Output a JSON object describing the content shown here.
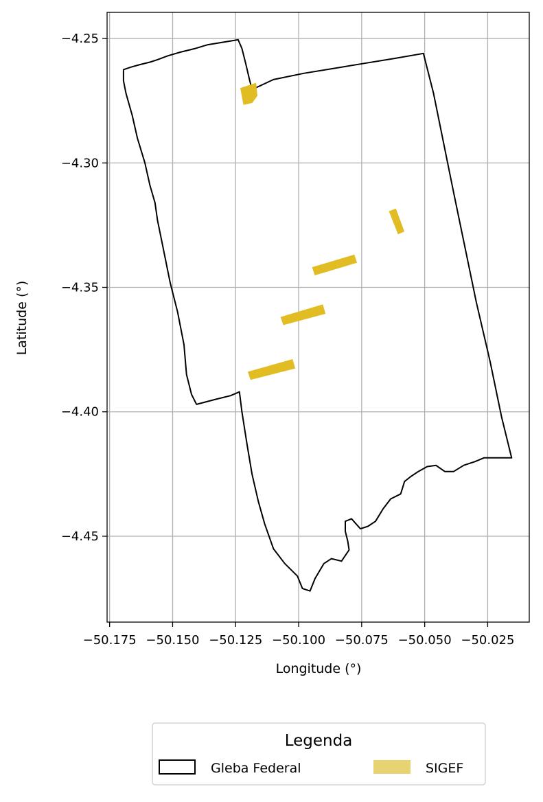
{
  "chart_data": {
    "type": "map",
    "xlabel": "Longitude (°)",
    "ylabel": "Latitude (°)",
    "xlim": [
      -50.176,
      -50.0085
    ],
    "ylim": [
      -4.4845,
      -4.2395
    ],
    "grid": true,
    "xticks": [
      {
        "value": -50.175,
        "label": "−50.175"
      },
      {
        "value": -50.15,
        "label": "−50.150"
      },
      {
        "value": -50.125,
        "label": "−50.125"
      },
      {
        "value": -50.1,
        "label": "−50.100"
      },
      {
        "value": -50.075,
        "label": "−50.075"
      },
      {
        "value": -50.05,
        "label": "−50.050"
      },
      {
        "value": -50.025,
        "label": "−50.025"
      }
    ],
    "yticks": [
      {
        "value": -4.25,
        "label": "−4.25"
      },
      {
        "value": -4.3,
        "label": "−4.30"
      },
      {
        "value": -4.35,
        "label": "−4.35"
      },
      {
        "value": -4.4,
        "label": "−4.40"
      },
      {
        "value": -4.45,
        "label": "−4.45"
      }
    ],
    "legend": {
      "title": "Legenda",
      "placement": "below",
      "entries": [
        {
          "label": "Gleba Federal",
          "style": "outline",
          "color": "#000000"
        },
        {
          "label": "SIGEF",
          "style": "fill",
          "color": "#e8d372"
        }
      ]
    },
    "layers": [
      {
        "name": "Gleba Federal",
        "type": "polygon",
        "stroke": "#000000",
        "fill": "none",
        "coordinates": [
          [
            -50.124,
            -4.2505
          ],
          [
            -50.13,
            -4.2515
          ],
          [
            -50.136,
            -4.2525
          ],
          [
            -50.141,
            -4.254
          ],
          [
            -50.147,
            -4.2555
          ],
          [
            -50.152,
            -4.257
          ],
          [
            -50.156,
            -4.2585
          ],
          [
            -50.159,
            -4.2595
          ],
          [
            -50.163,
            -4.2605
          ],
          [
            -50.1665,
            -4.2615
          ],
          [
            -50.1695,
            -4.2625
          ],
          [
            -50.1695,
            -4.267
          ],
          [
            -50.1685,
            -4.272
          ],
          [
            -50.166,
            -4.281
          ],
          [
            -50.164,
            -4.29
          ],
          [
            -50.161,
            -4.3
          ],
          [
            -50.159,
            -4.309
          ],
          [
            -50.157,
            -4.316
          ],
          [
            -50.156,
            -4.323
          ],
          [
            -50.154,
            -4.333
          ],
          [
            -50.151,
            -4.348
          ],
          [
            -50.148,
            -4.36
          ],
          [
            -50.1455,
            -4.373
          ],
          [
            -50.1445,
            -4.385
          ],
          [
            -50.1425,
            -4.393
          ],
          [
            -50.1405,
            -4.397
          ],
          [
            -50.133,
            -4.395
          ],
          [
            -50.127,
            -4.3935
          ],
          [
            -50.1235,
            -4.392
          ],
          [
            -50.1225,
            -4.4
          ],
          [
            -50.1205,
            -4.413
          ],
          [
            -50.1185,
            -4.425
          ],
          [
            -50.116,
            -4.436
          ],
          [
            -50.1135,
            -4.445
          ],
          [
            -50.11,
            -4.455
          ],
          [
            -50.1055,
            -4.461
          ],
          [
            -50.1005,
            -4.466
          ],
          [
            -50.0985,
            -4.471
          ],
          [
            -50.0955,
            -4.472
          ],
          [
            -50.0935,
            -4.467
          ],
          [
            -50.09,
            -4.461
          ],
          [
            -50.087,
            -4.459
          ],
          [
            -50.083,
            -4.46
          ],
          [
            -50.08,
            -4.4555
          ],
          [
            -50.0805,
            -4.452
          ],
          [
            -50.0815,
            -4.448
          ],
          [
            -50.0815,
            -4.444
          ],
          [
            -50.079,
            -4.443
          ],
          [
            -50.0755,
            -4.447
          ],
          [
            -50.0725,
            -4.446
          ],
          [
            -50.0695,
            -4.444
          ],
          [
            -50.0665,
            -4.439
          ],
          [
            -50.0635,
            -4.435
          ],
          [
            -50.0595,
            -4.433
          ],
          [
            -50.058,
            -4.428
          ],
          [
            -50.0555,
            -4.426
          ],
          [
            -50.0525,
            -4.424
          ],
          [
            -50.049,
            -4.422
          ],
          [
            -50.0455,
            -4.4215
          ],
          [
            -50.042,
            -4.424
          ],
          [
            -50.0385,
            -4.424
          ],
          [
            -50.0345,
            -4.4215
          ],
          [
            -50.03,
            -4.42
          ],
          [
            -50.0265,
            -4.4185
          ],
          [
            -50.0225,
            -4.4185
          ],
          [
            -50.0195,
            -4.4185
          ],
          [
            -50.0155,
            -4.4185
          ],
          [
            -50.0195,
            -4.402
          ],
          [
            -50.024,
            -4.38
          ],
          [
            -50.0295,
            -4.356
          ],
          [
            -50.034,
            -4.334
          ],
          [
            -50.0385,
            -4.312
          ],
          [
            -50.0425,
            -4.292
          ],
          [
            -50.0465,
            -4.272
          ],
          [
            -50.0505,
            -4.256
          ],
          [
            -50.062,
            -4.258
          ],
          [
            -50.074,
            -4.26
          ],
          [
            -50.086,
            -4.262
          ],
          [
            -50.098,
            -4.264
          ],
          [
            -50.11,
            -4.2665
          ],
          [
            -50.1185,
            -4.2705
          ],
          [
            -50.1195,
            -4.2665
          ],
          [
            -50.121,
            -4.26
          ],
          [
            -50.1225,
            -4.254
          ],
          [
            -50.124,
            -4.2505
          ]
        ]
      },
      {
        "name": "SIGEF",
        "type": "polygons",
        "fill": "#e1bc22",
        "features": [
          [
            [
              -50.123,
              -4.27
            ],
            [
              -50.117,
              -4.268
            ],
            [
              -50.1165,
              -4.273
            ],
            [
              -50.1185,
              -4.2758
            ],
            [
              -50.1218,
              -4.2765
            ]
          ],
          [
            [
              -50.0945,
              -4.342
            ],
            [
              -50.078,
              -4.337
            ],
            [
              -50.077,
              -4.34
            ],
            [
              -50.0935,
              -4.345
            ]
          ],
          [
            [
              -50.107,
              -4.362
            ],
            [
              -50.0905,
              -4.357
            ],
            [
              -50.0895,
              -4.3605
            ],
            [
              -50.106,
              -4.365
            ]
          ],
          [
            [
              -50.12,
              -4.384
            ],
            [
              -50.1025,
              -4.379
            ],
            [
              -50.1015,
              -4.3825
            ],
            [
              -50.119,
              -4.387
            ]
          ],
          [
            [
              -50.064,
              -4.3195
            ],
            [
              -50.0615,
              -4.3185
            ],
            [
              -50.0582,
              -4.3275
            ],
            [
              -50.0605,
              -4.3285
            ]
          ]
        ]
      }
    ]
  }
}
